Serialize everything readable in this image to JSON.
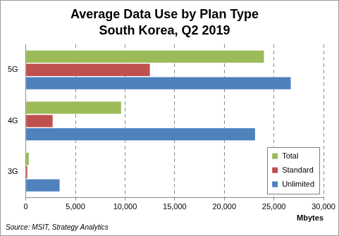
{
  "chart_data": {
    "type": "bar",
    "orientation": "horizontal",
    "title": "Average Data Use by Plan Type",
    "subtitle": "South Korea, Q2 2019",
    "xlabel": "Mbytes",
    "annotation": "Source: MSIT, Strategy Analytics",
    "categories": [
      "5G",
      "4G",
      "3G"
    ],
    "series": [
      {
        "name": "Total",
        "color": "#9bbb59",
        "values": [
          24000,
          9600,
          300
        ]
      },
      {
        "name": "Standard",
        "color": "#c0504d",
        "values": [
          12500,
          2700,
          150
        ]
      },
      {
        "name": "Unlimited",
        "color": "#4f81bd",
        "values": [
          26700,
          23100,
          3400
        ]
      }
    ],
    "xlim": [
      0,
      30000
    ],
    "xticks": [
      0,
      {
        "value": 5000,
        "label": "5,000"
      },
      {
        "value": 10000,
        "label": "10,000"
      },
      {
        "value": 15000,
        "label": "15,000"
      },
      {
        "value": 20000,
        "label": "20,000"
      },
      {
        "value": 25000,
        "label": "25,000"
      },
      {
        "value": 30000,
        "label": "30,000"
      }
    ],
    "grid": true,
    "legend": "lower right"
  }
}
